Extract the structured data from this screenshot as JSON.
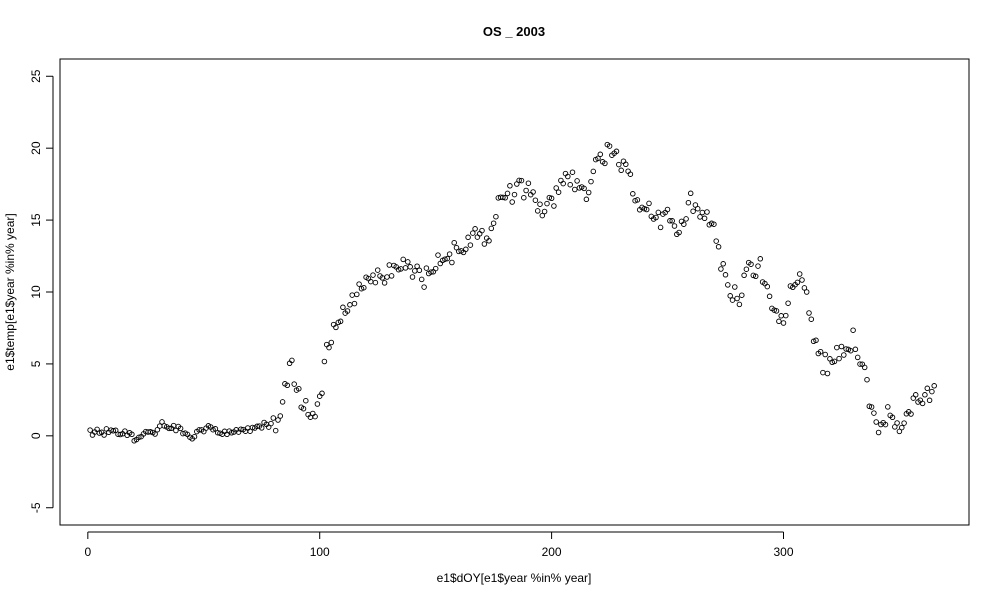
{
  "chart_data": {
    "type": "scatter",
    "title": "OS _ 2003",
    "xlabel": "e1$dOY[e1$year %in% year]",
    "ylabel": "e1$temp[e1$year %in% year]",
    "xlim": [
      -12,
      380
    ],
    "ylim": [
      -6.2,
      26.2
    ],
    "xticks": [
      0,
      100,
      200,
      300
    ],
    "yticks": [
      -5,
      0,
      5,
      10,
      15,
      20,
      25
    ],
    "grid": false,
    "legend": "none",
    "marker": "open-circle",
    "color": "#000000",
    "anchors": [
      [
        2,
        0.3
      ],
      [
        15,
        0.2
      ],
      [
        20,
        -0.1
      ],
      [
        28,
        0.2
      ],
      [
        33,
        0.9
      ],
      [
        38,
        0.5
      ],
      [
        45,
        0.0
      ],
      [
        52,
        0.7
      ],
      [
        58,
        0.2
      ],
      [
        65,
        0.4
      ],
      [
        72,
        0.6
      ],
      [
        78,
        0.8
      ],
      [
        82,
        1.2
      ],
      [
        85,
        3.8
      ],
      [
        88,
        4.6
      ],
      [
        92,
        2.5
      ],
      [
        95,
        1.5
      ],
      [
        98,
        1.0
      ],
      [
        101,
        3.5
      ],
      [
        103,
        6.0
      ],
      [
        108,
        8.0
      ],
      [
        113,
        9.3
      ],
      [
        118,
        10.8
      ],
      [
        123,
        11.2
      ],
      [
        128,
        11.3
      ],
      [
        133,
        11.7
      ],
      [
        140,
        11.5
      ],
      [
        145,
        11.0
      ],
      [
        150,
        11.8
      ],
      [
        155,
        12.4
      ],
      [
        160,
        13.0
      ],
      [
        165,
        13.8
      ],
      [
        170,
        13.8
      ],
      [
        173,
        14.2
      ],
      [
        177,
        16.2
      ],
      [
        180,
        16.5
      ],
      [
        185,
        17.3
      ],
      [
        190,
        17.0
      ],
      [
        195,
        16.0
      ],
      [
        200,
        16.0
      ],
      [
        205,
        18.0
      ],
      [
        210,
        17.5
      ],
      [
        215,
        17.0
      ],
      [
        218,
        18.3
      ],
      [
        222,
        19.5
      ],
      [
        226,
        19.6
      ],
      [
        230,
        18.5
      ],
      [
        233,
        18.2
      ],
      [
        236,
        16.0
      ],
      [
        240,
        16.2
      ],
      [
        245,
        15.0
      ],
      [
        250,
        15.5
      ],
      [
        255,
        14.0
      ],
      [
        260,
        16.3
      ],
      [
        265,
        15.8
      ],
      [
        270,
        14.8
      ],
      [
        273,
        12.2
      ],
      [
        276,
        10.8
      ],
      [
        280,
        9.2
      ],
      [
        285,
        11.5
      ],
      [
        290,
        12.0
      ],
      [
        295,
        8.5
      ],
      [
        300,
        7.5
      ],
      [
        303,
        10.0
      ],
      [
        306,
        11.0
      ],
      [
        310,
        9.5
      ],
      [
        313,
        7.0
      ],
      [
        317,
        4.8
      ],
      [
        322,
        5.5
      ],
      [
        326,
        6.0
      ],
      [
        330,
        6.7
      ],
      [
        335,
        4.5
      ],
      [
        338,
        1.5
      ],
      [
        341,
        0.5
      ],
      [
        345,
        1.8
      ],
      [
        349,
        0.7
      ],
      [
        352,
        1.5
      ],
      [
        356,
        2.3
      ],
      [
        360,
        2.8
      ],
      [
        365,
        3.2
      ]
    ],
    "noise_amplitude": 0.75,
    "n_days": 365
  }
}
